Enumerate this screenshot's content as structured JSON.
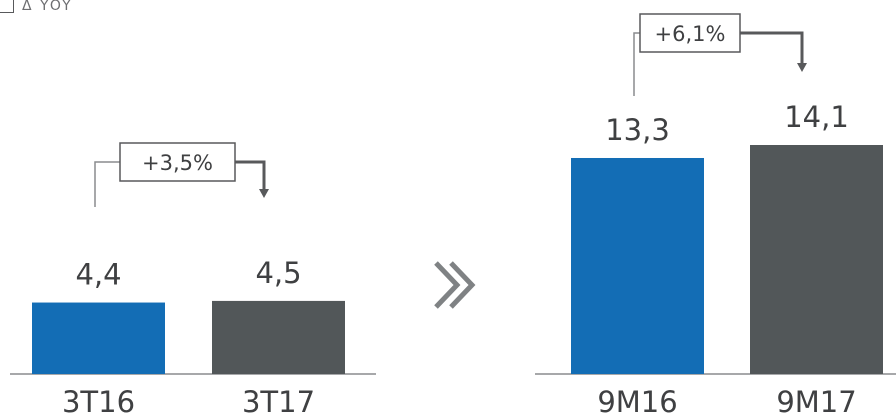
{
  "legend": {
    "label": "Δ YOY",
    "icon": "bracket-box-icon"
  },
  "separator": {
    "icon": "double-chevron-right-icon",
    "color": "#7f8284"
  },
  "colors": {
    "prior": "#136db5",
    "current": "#525759",
    "text": "#3f4042",
    "line": "#58595b"
  },
  "chart_data": [
    {
      "type": "bar",
      "categories": [
        "3T16",
        "3T17"
      ],
      "values": [
        4.4,
        4.5
      ],
      "value_labels": [
        "4,4",
        "4,5"
      ],
      "change_label": "+3,5%"
    },
    {
      "type": "bar",
      "categories": [
        "9M16",
        "9M17"
      ],
      "values": [
        13.3,
        14.1
      ],
      "value_labels": [
        "13,3",
        "14,1"
      ],
      "change_label": "+6,1%"
    }
  ]
}
